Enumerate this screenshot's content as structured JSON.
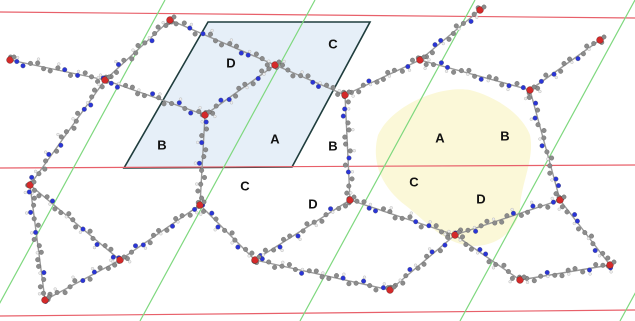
{
  "colors": {
    "lattice_line_red": "#e8606a",
    "lattice_line_green": "#7ed87e",
    "unit_cell_fill": "#e6eff8",
    "unit_cell_stroke": "#1f3d3d",
    "pore_highlight_fill": "#fbf8d8",
    "atom_carbon": "#8c8c8c",
    "atom_nitrogen": "#2a35d6",
    "atom_oxygen": "#d42a2a",
    "atom_hydrogen": "#eeeeee"
  },
  "unit_cell": {
    "labels": [
      "A",
      "B",
      "C",
      "D"
    ]
  },
  "pore_regions": {
    "labels": [
      "B",
      "C",
      "D"
    ]
  },
  "highlighted_pore": {
    "labels": [
      "A",
      "B",
      "C",
      "D"
    ]
  }
}
